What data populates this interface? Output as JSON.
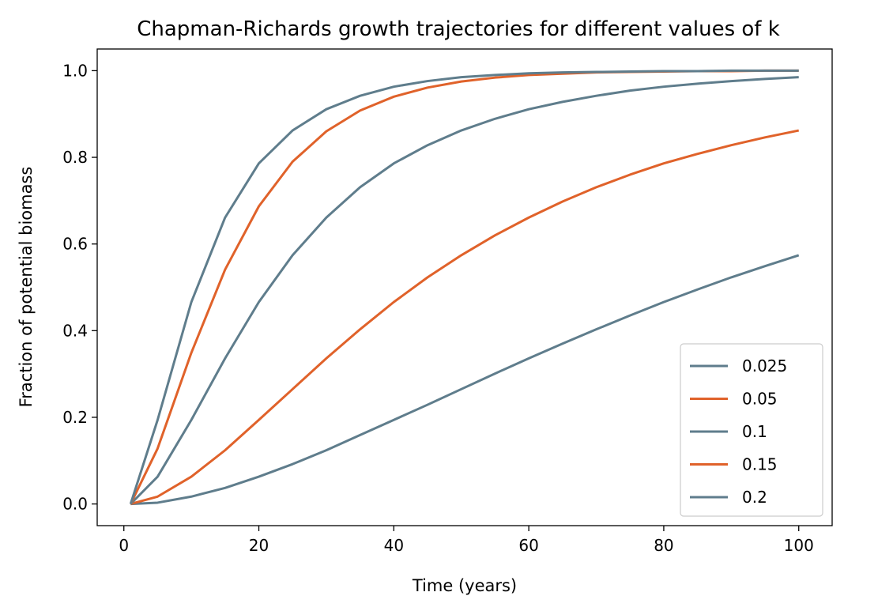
{
  "chart_data": {
    "type": "line",
    "title": "Chapman-Richards growth trajectories for different values of k",
    "xlabel": "Time (years)",
    "ylabel": "Fraction of potential biomass",
    "xlim": [
      -3.95,
      104.95
    ],
    "ylim": [
      -0.05,
      1.05
    ],
    "xticks": [
      0,
      20,
      40,
      60,
      80,
      100
    ],
    "xtick_labels": [
      "0",
      "20",
      "40",
      "60",
      "80",
      "100"
    ],
    "yticks": [
      0.0,
      0.2,
      0.4,
      0.6,
      0.8,
      1.0
    ],
    "ytick_labels": [
      "0.0",
      "0.2",
      "0.4",
      "0.6",
      "0.8",
      "1.0"
    ],
    "grid": false,
    "legend_position": "bottom-right",
    "x": [
      1,
      5,
      10,
      15,
      20,
      25,
      30,
      35,
      40,
      45,
      50,
      55,
      60,
      65,
      70,
      75,
      80,
      85,
      90,
      95,
      100
    ],
    "series": [
      {
        "name": "0.025",
        "color": "#5f7d8c",
        "values": [
          0.0,
          0.003,
          0.017,
          0.037,
          0.063,
          0.092,
          0.124,
          0.159,
          0.194,
          0.229,
          0.265,
          0.301,
          0.336,
          0.37,
          0.403,
          0.435,
          0.466,
          0.495,
          0.523,
          0.549,
          0.574
        ]
      },
      {
        "name": "0.05",
        "color": "#e0622a",
        "values": [
          0.0,
          0.017,
          0.063,
          0.124,
          0.194,
          0.265,
          0.336,
          0.403,
          0.466,
          0.523,
          0.574,
          0.62,
          0.661,
          0.698,
          0.731,
          0.76,
          0.786,
          0.808,
          0.828,
          0.846,
          0.862
        ]
      },
      {
        "name": "0.1",
        "color": "#5f7d8c",
        "values": [
          0.0,
          0.063,
          0.194,
          0.336,
          0.466,
          0.574,
          0.661,
          0.731,
          0.786,
          0.828,
          0.862,
          0.889,
          0.911,
          0.928,
          0.942,
          0.954,
          0.963,
          0.97,
          0.976,
          0.981,
          0.985
        ]
      },
      {
        "name": "0.15",
        "color": "#e0622a",
        "values": [
          0.0,
          0.128,
          0.349,
          0.541,
          0.687,
          0.79,
          0.86,
          0.908,
          0.94,
          0.961,
          0.975,
          0.984,
          0.99,
          0.993,
          0.996,
          0.997,
          0.998,
          0.999,
          0.999,
          1.0,
          1.0
        ]
      },
      {
        "name": "0.2",
        "color": "#5f7d8c",
        "values": [
          0.0,
          0.194,
          0.466,
          0.661,
          0.786,
          0.862,
          0.911,
          0.942,
          0.963,
          0.976,
          0.985,
          0.99,
          0.994,
          0.996,
          0.997,
          0.998,
          0.999,
          0.999,
          1.0,
          1.0,
          1.0
        ]
      }
    ]
  }
}
